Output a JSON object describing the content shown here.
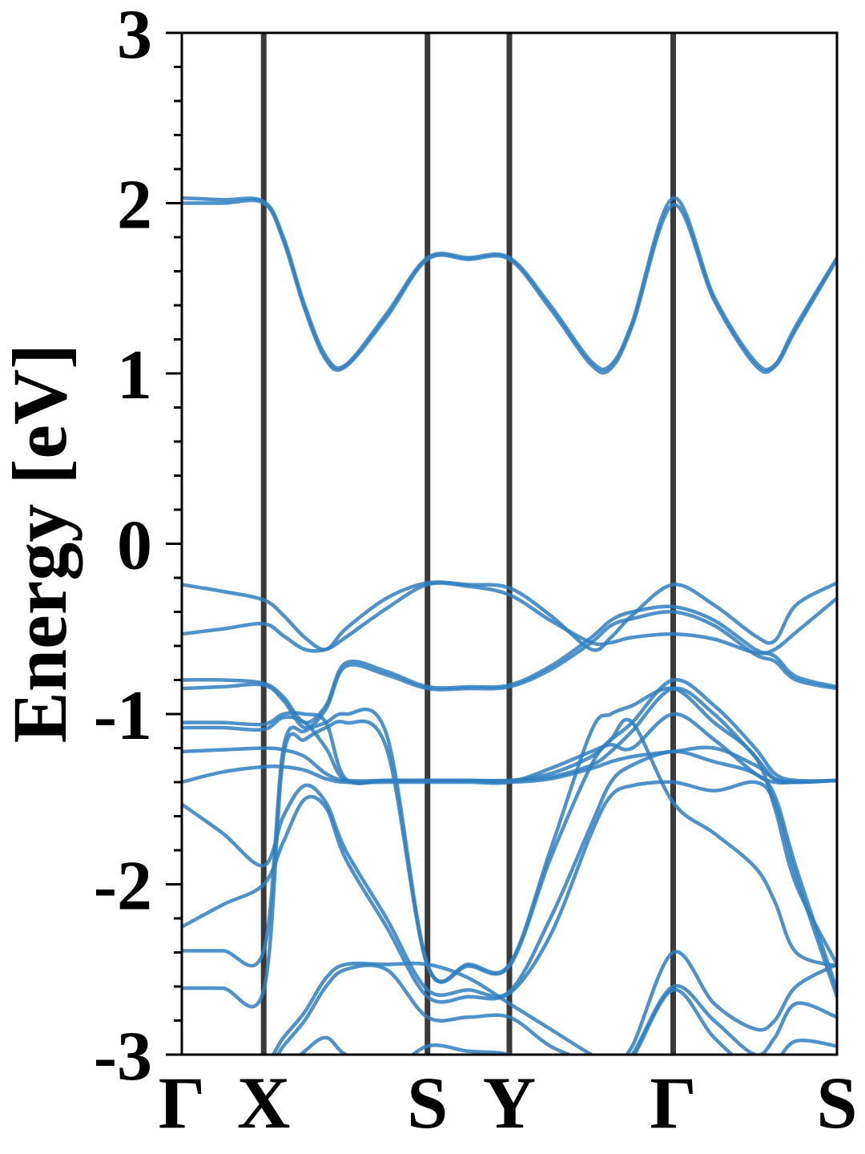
{
  "chart_data": {
    "type": "line",
    "title": "",
    "xlabel": "",
    "ylabel": "Energy [eV]",
    "ylim": [
      -3,
      3
    ],
    "y_ticks": [
      "3",
      "2",
      "1",
      "0",
      "-1",
      "-2",
      "-3"
    ],
    "y_minor_step": 0.2,
    "grid": false,
    "legend": "none",
    "high_symmetry_points": [
      {
        "label": "Γ",
        "k": 0.0,
        "line": false
      },
      {
        "label": "X",
        "k": 0.5,
        "line": true
      },
      {
        "label": "S",
        "k": 1.5,
        "line": true
      },
      {
        "label": "Y",
        "k": 2.0,
        "line": true
      },
      {
        "label": "Γ",
        "k": 3.0,
        "line": true
      },
      {
        "label": "S",
        "k": 4.0,
        "line": false
      }
    ],
    "colors": {
      "bands": "#2f7fbf",
      "symmetry_lines": "#3a3a3a"
    },
    "k_grid": [
      0.0,
      0.25,
      0.5,
      0.62,
      0.75,
      0.88,
      1.0,
      1.25,
      1.5,
      1.75,
      2.0,
      2.25,
      2.5,
      2.62,
      2.75,
      3.0,
      3.25,
      3.5,
      3.62,
      3.75,
      4.0
    ],
    "series": [
      {
        "values": [
          2.03,
          2.02,
          2.01,
          1.8,
          1.4,
          1.1,
          1.05,
          1.35,
          1.68,
          1.68,
          1.68,
          1.4,
          1.07,
          1.05,
          1.3,
          2.03,
          1.45,
          1.07,
          1.05,
          1.28,
          1.68
        ]
      },
      {
        "values": [
          2.0,
          2.0,
          2.0,
          1.78,
          1.38,
          1.08,
          1.04,
          1.33,
          1.67,
          1.67,
          1.67,
          1.38,
          1.05,
          1.03,
          1.28,
          1.99,
          1.43,
          1.05,
          1.04,
          1.26,
          1.67
        ]
      },
      {
        "values": [
          -0.24,
          -0.28,
          -0.33,
          -0.42,
          -0.55,
          -0.62,
          -0.5,
          -0.32,
          -0.23,
          -0.24,
          -0.26,
          -0.42,
          -0.62,
          -0.55,
          -0.42,
          -0.24,
          -0.36,
          -0.54,
          -0.57,
          -0.36,
          -0.23
        ]
      },
      {
        "values": [
          -0.53,
          -0.5,
          -0.47,
          -0.54,
          -0.62,
          -0.62,
          -0.55,
          -0.38,
          -0.24,
          -0.25,
          -0.3,
          -0.45,
          -0.58,
          -0.58,
          -0.55,
          -0.53,
          -0.56,
          -0.64,
          -0.62,
          -0.52,
          -0.32
        ]
      },
      {
        "values": [
          -0.8,
          -0.8,
          -0.82,
          -0.9,
          -1.05,
          -0.95,
          -0.7,
          -0.75,
          -0.84,
          -0.84,
          -0.83,
          -0.72,
          -0.55,
          -0.45,
          -0.4,
          -0.37,
          -0.45,
          -0.62,
          -0.66,
          -0.78,
          -0.84
        ]
      },
      {
        "values": [
          -0.85,
          -0.84,
          -0.83,
          -0.92,
          -1.08,
          -0.97,
          -0.72,
          -0.77,
          -0.85,
          -0.85,
          -0.84,
          -0.74,
          -0.58,
          -0.48,
          -0.44,
          -0.4,
          -0.48,
          -0.65,
          -0.69,
          -0.8,
          -0.85
        ]
      },
      {
        "values": [
          -1.05,
          -1.05,
          -1.06,
          -1.0,
          -1.0,
          -1.05,
          -1.38,
          -1.39,
          -1.39,
          -1.39,
          -1.39,
          -1.35,
          -1.25,
          -1.15,
          -1.05,
          -0.8,
          -0.95,
          -1.2,
          -1.35,
          -1.39,
          -1.39
        ]
      },
      {
        "values": [
          -1.08,
          -1.08,
          -1.09,
          -1.02,
          -1.05,
          -1.2,
          -1.39,
          -1.39,
          -1.39,
          -1.39,
          -1.39,
          -1.37,
          -1.3,
          -1.22,
          -1.1,
          -0.85,
          -1.0,
          -1.25,
          -1.38,
          -1.4,
          -1.39
        ]
      },
      {
        "values": [
          -1.22,
          -1.21,
          -1.2,
          -1.21,
          -1.25,
          -1.35,
          -1.39,
          -1.39,
          -1.39,
          -1.39,
          -1.4,
          -1.38,
          -1.32,
          -1.28,
          -1.25,
          -1.22,
          -1.2,
          -1.3,
          -1.38,
          -1.4,
          -1.39
        ]
      },
      {
        "values": [
          -1.4,
          -1.34,
          -1.31,
          -1.31,
          -1.33,
          -1.38,
          -1.4,
          -1.4,
          -1.4,
          -1.4,
          -1.4,
          -1.32,
          -1.22,
          -1.18,
          -1.2,
          -1.0,
          -1.15,
          -1.35,
          -1.4,
          -1.4,
          -1.39
        ]
      },
      {
        "values": [
          -1.53,
          -1.7,
          -1.89,
          -1.6,
          -1.42,
          -1.52,
          -1.8,
          -2.2,
          -2.62,
          -2.62,
          -2.63,
          -2.2,
          -1.65,
          -1.4,
          -1.3,
          -1.22,
          -1.28,
          -1.35,
          -1.48,
          -1.9,
          -2.62
        ]
      },
      {
        "values": [
          -2.25,
          -2.12,
          -2.0,
          -1.75,
          -1.5,
          -1.55,
          -1.85,
          -2.25,
          -2.66,
          -2.66,
          -2.64,
          -2.3,
          -1.7,
          -1.48,
          -1.42,
          -1.4,
          -1.45,
          -1.4,
          -1.52,
          -1.95,
          -2.66
        ]
      },
      {
        "values": [
          -2.39,
          -2.39,
          -2.39,
          -1.2,
          -1.1,
          -1.05,
          -1.0,
          -1.12,
          -2.47,
          -2.47,
          -2.47,
          -1.8,
          -1.1,
          -1.0,
          -0.95,
          -0.85,
          -1.05,
          -1.25,
          -1.55,
          -2.0,
          -2.47
        ]
      },
      {
        "values": [
          -2.61,
          -2.61,
          -2.62,
          -1.25,
          -1.15,
          -1.08,
          -1.05,
          -1.2,
          -2.48,
          -2.48,
          -2.48,
          -1.85,
          -1.3,
          -1.15,
          -1.05,
          -1.52,
          -1.7,
          -1.9,
          -2.1,
          -2.4,
          -2.48
        ]
      },
      {
        "values": [
          -3.05,
          -3.05,
          -3.05,
          -2.9,
          -2.75,
          -2.55,
          -2.47,
          -2.47,
          -2.47,
          -2.55,
          -2.7,
          -2.85,
          -3.0,
          -3.05,
          -2.95,
          -2.4,
          -2.7,
          -2.85,
          -2.8,
          -2.6,
          -2.47
        ]
      },
      {
        "values": [
          -3.1,
          -3.1,
          -3.1,
          -2.95,
          -2.8,
          -2.6,
          -2.5,
          -2.5,
          -2.78,
          -2.78,
          -2.78,
          -2.95,
          -3.05,
          -3.1,
          -3.0,
          -2.6,
          -2.8,
          -3.0,
          -2.9,
          -2.7,
          -2.78
        ]
      },
      {
        "values": [
          -3.2,
          -3.2,
          -3.2,
          -3.1,
          -2.98,
          -2.9,
          -3.0,
          -3.1,
          -2.95,
          -2.98,
          -3.0,
          -3.1,
          -3.15,
          -3.1,
          -3.02,
          -2.62,
          -2.9,
          -3.1,
          -3.05,
          -2.92,
          -2.95
        ]
      }
    ]
  }
}
